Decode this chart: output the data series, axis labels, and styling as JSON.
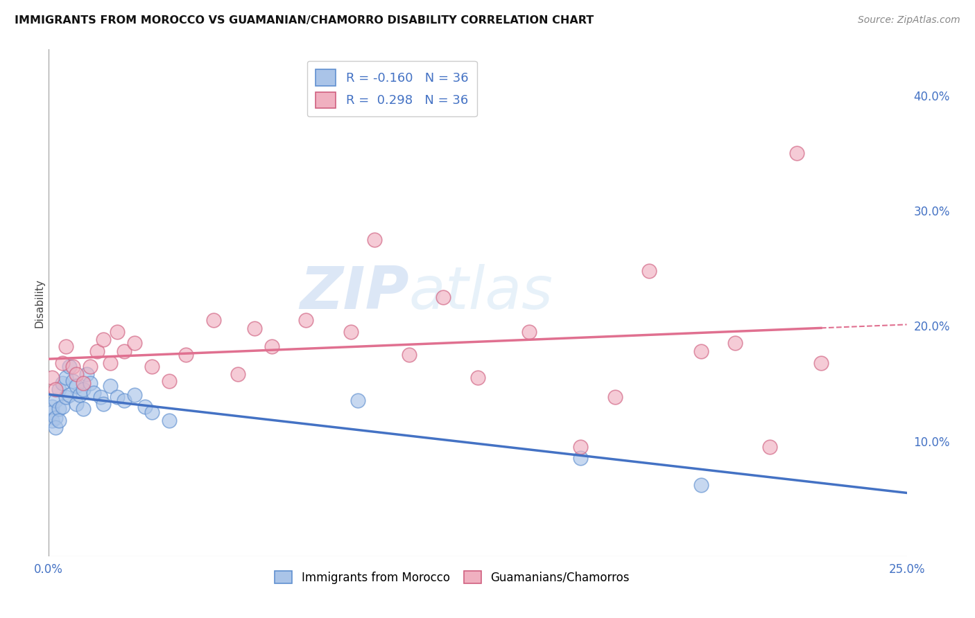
{
  "title": "IMMIGRANTS FROM MOROCCO VS GUAMANIAN/CHAMORRO DISABILITY CORRELATION CHART",
  "source": "Source: ZipAtlas.com",
  "ylabel": "Disability",
  "xlim": [
    0.0,
    0.25
  ],
  "ylim": [
    0.0,
    0.44
  ],
  "ytick_right_labels": [
    "10.0%",
    "20.0%",
    "30.0%",
    "40.0%"
  ],
  "ytick_right_vals": [
    0.1,
    0.2,
    0.3,
    0.4
  ],
  "legend_labels_bottom": [
    "Immigrants from Morocco",
    "Guamanians/Chamorros"
  ],
  "watermark_zip": "ZIP",
  "watermark_atlas": "atlas",
  "blue_color": "#4472c4",
  "pink_color": "#e07090",
  "blue_scatter_fill": "#aac4e8",
  "pink_scatter_fill": "#f0b0c0",
  "blue_scatter_edge": "#6090d0",
  "pink_scatter_edge": "#d06080",
  "morocco_x": [
    0.001,
    0.001,
    0.001,
    0.002,
    0.002,
    0.002,
    0.003,
    0.003,
    0.003,
    0.004,
    0.004,
    0.005,
    0.005,
    0.006,
    0.006,
    0.007,
    0.008,
    0.008,
    0.009,
    0.01,
    0.01,
    0.011,
    0.012,
    0.013,
    0.015,
    0.016,
    0.018,
    0.02,
    0.022,
    0.025,
    0.028,
    0.03,
    0.035,
    0.09,
    0.155,
    0.19
  ],
  "morocco_y": [
    0.13,
    0.125,
    0.118,
    0.135,
    0.12,
    0.112,
    0.145,
    0.128,
    0.118,
    0.15,
    0.13,
    0.155,
    0.138,
    0.165,
    0.14,
    0.152,
    0.148,
    0.132,
    0.14,
    0.145,
    0.128,
    0.158,
    0.15,
    0.142,
    0.138,
    0.132,
    0.148,
    0.138,
    0.135,
    0.14,
    0.13,
    0.125,
    0.118,
    0.135,
    0.085,
    0.062
  ],
  "guam_x": [
    0.001,
    0.002,
    0.004,
    0.005,
    0.007,
    0.008,
    0.01,
    0.012,
    0.014,
    0.016,
    0.018,
    0.02,
    0.022,
    0.025,
    0.03,
    0.035,
    0.04,
    0.048,
    0.055,
    0.06,
    0.065,
    0.075,
    0.088,
    0.095,
    0.105,
    0.115,
    0.125,
    0.14,
    0.155,
    0.165,
    0.175,
    0.19,
    0.2,
    0.21,
    0.218,
    0.225
  ],
  "guam_y": [
    0.155,
    0.145,
    0.168,
    0.182,
    0.165,
    0.158,
    0.15,
    0.165,
    0.178,
    0.188,
    0.168,
    0.195,
    0.178,
    0.185,
    0.165,
    0.152,
    0.175,
    0.205,
    0.158,
    0.198,
    0.182,
    0.205,
    0.195,
    0.275,
    0.175,
    0.225,
    0.155,
    0.195,
    0.095,
    0.138,
    0.248,
    0.178,
    0.185,
    0.095,
    0.35,
    0.168
  ],
  "blue_intercept": 0.135,
  "blue_slope": -0.38,
  "pink_intercept": 0.128,
  "pink_slope": 0.42
}
